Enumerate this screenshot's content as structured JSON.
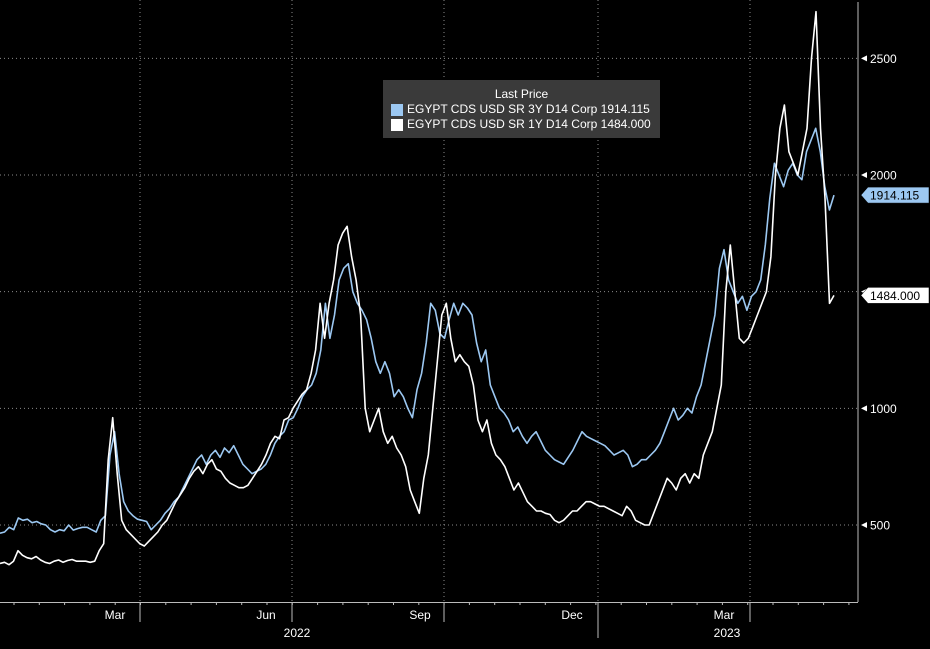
{
  "chart_data": {
    "type": "line",
    "title": "Last Price",
    "legend_placement": "top-center",
    "grid": true,
    "ylim": [
      170,
      2750
    ],
    "y_ticks": [
      500,
      1000,
      1500,
      2000,
      2500
    ],
    "y_tick_labels": [
      "500",
      "1000",
      "1500",
      "2000",
      "2500"
    ],
    "x_labels": [
      "Mar",
      "Jun",
      "Sep",
      "Dec",
      "Mar"
    ],
    "year_labels": [
      "2022",
      "2023"
    ],
    "series": [
      {
        "name": "EGYPT CDS USD SR 3Y D14 Corp",
        "last": "1914.115",
        "color": "#9cc8f2",
        "values": [
          465,
          470,
          490,
          480,
          530,
          520,
          525,
          510,
          515,
          505,
          500,
          480,
          470,
          480,
          475,
          500,
          478,
          485,
          490,
          490,
          480,
          470,
          520,
          540,
          800,
          900,
          720,
          600,
          560,
          540,
          525,
          520,
          515,
          480,
          500,
          520,
          550,
          570,
          600,
          620,
          660,
          700,
          740,
          780,
          800,
          760,
          800,
          820,
          790,
          830,
          810,
          840,
          800,
          760,
          740,
          720,
          730,
          740,
          760,
          800,
          850,
          880,
          900,
          950,
          960,
          1000,
          1050,
          1080,
          1100,
          1150,
          1250,
          1450,
          1300,
          1400,
          1550,
          1600,
          1620,
          1500,
          1450,
          1420,
          1380,
          1300,
          1200,
          1150,
          1200,
          1150,
          1050,
          1080,
          1050,
          1000,
          960,
          1080,
          1150,
          1280,
          1450,
          1420,
          1320,
          1300,
          1380,
          1450,
          1400,
          1450,
          1430,
          1400,
          1280,
          1200,
          1250,
          1100,
          1050,
          1000,
          980,
          950,
          900,
          920,
          880,
          850,
          880,
          900,
          860,
          820,
          800,
          780,
          770,
          760,
          790,
          820,
          860,
          900,
          880,
          870,
          860,
          850,
          840,
          820,
          800,
          810,
          820,
          800,
          750,
          760,
          780,
          780,
          800,
          820,
          850,
          900,
          950,
          1000,
          950,
          970,
          1000,
          980,
          1050,
          1100,
          1200,
          1300,
          1400,
          1600,
          1680,
          1550,
          1500,
          1450,
          1480,
          1420,
          1480,
          1500,
          1550,
          1700,
          1900,
          2050,
          2000,
          1950,
          2020,
          2050,
          2000,
          1980,
          2100,
          2150,
          2200,
          2100,
          1950,
          1850,
          1914
        ]
      },
      {
        "name": "EGYPT CDS USD SR 1Y D14 Corp",
        "last": "1484.000",
        "color": "#ffffff",
        "values": [
          335,
          340,
          330,
          345,
          390,
          370,
          360,
          355,
          365,
          350,
          340,
          335,
          345,
          350,
          340,
          348,
          352,
          345,
          345,
          345,
          340,
          345,
          390,
          420,
          780,
          960,
          720,
          520,
          480,
          460,
          440,
          420,
          410,
          430,
          450,
          470,
          500,
          520,
          560,
          600,
          630,
          660,
          700,
          730,
          750,
          720,
          760,
          780,
          740,
          730,
          700,
          680,
          670,
          660,
          660,
          670,
          700,
          730,
          760,
          800,
          850,
          880,
          870,
          950,
          960,
          1000,
          1030,
          1060,
          1080,
          1150,
          1250,
          1450,
          1300,
          1450,
          1550,
          1700,
          1750,
          1780,
          1650,
          1550,
          1400,
          1000,
          900,
          950,
          1000,
          900,
          850,
          880,
          830,
          800,
          750,
          650,
          600,
          550,
          700,
          800,
          1000,
          1200,
          1400,
          1450,
          1300,
          1200,
          1230,
          1200,
          1180,
          1100,
          950,
          900,
          950,
          850,
          800,
          780,
          750,
          700,
          650,
          680,
          640,
          600,
          580,
          560,
          560,
          550,
          545,
          520,
          510,
          520,
          540,
          560,
          560,
          580,
          600,
          600,
          590,
          580,
          580,
          570,
          560,
          550,
          540,
          580,
          560,
          520,
          510,
          500,
          500,
          550,
          600,
          650,
          700,
          680,
          650,
          700,
          720,
          680,
          720,
          700,
          800,
          850,
          900,
          1000,
          1100,
          1500,
          1700,
          1500,
          1300,
          1280,
          1300,
          1350,
          1400,
          1450,
          1500,
          1650,
          2000,
          2200,
          2300,
          2100,
          2050,
          2000,
          2100,
          2200,
          2500,
          2700,
          2200,
          1900,
          1450,
          1484
        ]
      }
    ]
  }
}
